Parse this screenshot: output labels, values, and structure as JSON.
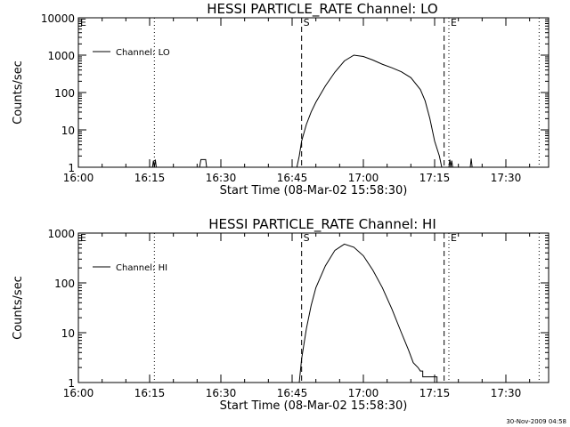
{
  "footer_timestamp": "30-Nov-2009 04:58",
  "chart_data": [
    {
      "type": "line",
      "title": "HESSI PARTICLE_RATE Channel: LO",
      "xlabel": "Start Time (08-Mar-02 15:58:30)",
      "ylabel": "Counts/sec",
      "yscale": "log",
      "ylim": [
        1,
        10000
      ],
      "y_ticks": [
        {
          "v": 10000,
          "label": "10000"
        },
        {
          "v": 1000,
          "label": "1000"
        },
        {
          "v": 100,
          "label": "100"
        },
        {
          "v": 10,
          "label": "10"
        },
        {
          "v": 1,
          "label": "1"
        }
      ],
      "xlim": [
        "16:00",
        "17:39"
      ],
      "x_ticks": [
        "16:00",
        "16:15",
        "16:30",
        "16:45",
        "17:00",
        "17:15",
        "17:30"
      ],
      "legend": "top-left",
      "markers": [
        {
          "time": "16:00",
          "label": "E",
          "style": "dotted"
        },
        {
          "time": "16:16",
          "label": "",
          "style": "dotted"
        },
        {
          "time": "16:47",
          "label": "S",
          "style": "dashed"
        },
        {
          "time": "17:17",
          "label": "",
          "style": "dashed"
        },
        {
          "time": "17:18",
          "label": "E",
          "style": "dotted"
        },
        {
          "time": "17:37",
          "label": "",
          "style": "dotted"
        }
      ],
      "series": [
        {
          "name": "Channel: LO",
          "points": [
            [
              "16:00",
              1
            ],
            [
              "16:15.6",
              1
            ],
            [
              "16:15.8",
              1.5
            ],
            [
              "16:16.0",
              1
            ],
            [
              "16:16.2",
              1.6
            ],
            [
              "16:16.4",
              1
            ],
            [
              "16:25.5",
              1
            ],
            [
              "16:25.8",
              1.6
            ],
            [
              "16:26.8",
              1.6
            ],
            [
              "16:27.0",
              1
            ],
            [
              "16:46.0",
              1
            ],
            [
              "16:46.5",
              2
            ],
            [
              "16:47.0",
              5
            ],
            [
              "16:48.0",
              14
            ],
            [
              "16:49.0",
              30
            ],
            [
              "16:50.0",
              55
            ],
            [
              "16:52.0",
              150
            ],
            [
              "16:54.0",
              350
            ],
            [
              "16:56.0",
              700
            ],
            [
              "16:58.0",
              1000
            ],
            [
              "17:00.0",
              920
            ],
            [
              "17:02.0",
              740
            ],
            [
              "17:04.0",
              570
            ],
            [
              "17:06.0",
              460
            ],
            [
              "17:08.0",
              360
            ],
            [
              "17:10.0",
              250
            ],
            [
              "17:12.0",
              120
            ],
            [
              "17:13.0",
              60
            ],
            [
              "17:14.0",
              20
            ],
            [
              "17:15.0",
              5
            ],
            [
              "17:16.0",
              2
            ],
            [
              "17:16.5",
              1
            ],
            [
              "17:18.0",
              1
            ],
            [
              "17:18.2",
              1.6
            ],
            [
              "17:18.4",
              1
            ],
            [
              "17:18.6",
              1.5
            ],
            [
              "17:18.8",
              1
            ],
            [
              "17:22.5",
              1
            ],
            [
              "17:22.7",
              1.7
            ],
            [
              "17:22.9",
              1
            ],
            [
              "17:39",
              1
            ]
          ]
        }
      ]
    },
    {
      "type": "line",
      "title": "HESSI PARTICLE_RATE Channel: HI",
      "xlabel": "Start Time (08-Mar-02 15:58:30)",
      "ylabel": "Counts/sec",
      "yscale": "log",
      "ylim": [
        1,
        1000
      ],
      "y_ticks": [
        {
          "v": 1000,
          "label": "1000"
        },
        {
          "v": 100,
          "label": "100"
        },
        {
          "v": 10,
          "label": "10"
        },
        {
          "v": 1,
          "label": "1"
        }
      ],
      "xlim": [
        "16:00",
        "17:39"
      ],
      "x_ticks": [
        "16:00",
        "16:15",
        "16:30",
        "16:45",
        "17:00",
        "17:15",
        "17:30"
      ],
      "legend": "top-left",
      "markers": [
        {
          "time": "16:00",
          "label": "E",
          "style": "dotted"
        },
        {
          "time": "16:16",
          "label": "",
          "style": "dotted"
        },
        {
          "time": "16:47",
          "label": "S",
          "style": "dashed"
        },
        {
          "time": "17:17",
          "label": "",
          "style": "dashed"
        },
        {
          "time": "17:18",
          "label": "E",
          "style": "dotted"
        },
        {
          "time": "17:37",
          "label": "",
          "style": "dotted"
        }
      ],
      "series": [
        {
          "name": "Channel: HI",
          "points": [
            [
              "16:46.5",
              1
            ],
            [
              "16:47.0",
              3
            ],
            [
              "16:48.0",
              12
            ],
            [
              "16:49.0",
              35
            ],
            [
              "16:50.0",
              80
            ],
            [
              "16:52.0",
              220
            ],
            [
              "16:54.0",
              450
            ],
            [
              "16:56.0",
              600
            ],
            [
              "16:58.0",
              520
            ],
            [
              "17:00.0",
              350
            ],
            [
              "17:02.0",
              180
            ],
            [
              "17:04.0",
              80
            ],
            [
              "17:06.0",
              30
            ],
            [
              "17:08.0",
              10
            ],
            [
              "17:09.5",
              4.5
            ],
            [
              "17:10.5",
              2.5
            ],
            [
              "17:11.5",
              2
            ],
            [
              "17:12.0",
              1.7
            ],
            [
              "17:12.5",
              1.7
            ],
            [
              "17:12.5",
              1.3
            ],
            [
              "17:15.5",
              1.3
            ],
            [
              "17:15.5",
              1
            ]
          ]
        }
      ]
    }
  ]
}
